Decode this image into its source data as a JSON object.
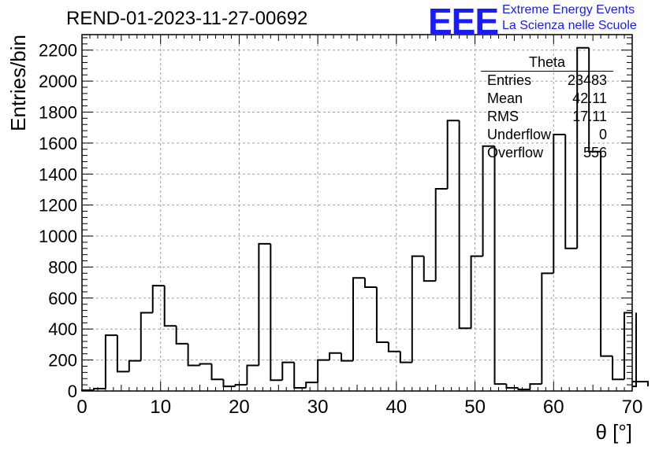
{
  "header": {
    "run_title": "REND-01-2023-11-27-00692",
    "logo": "EEE",
    "logo_line1": "Extreme Energy Events",
    "logo_line2": "La Scienza nelle Scuole"
  },
  "stats": {
    "title": "Theta",
    "rows": [
      {
        "label": "Entries",
        "value": "23483"
      },
      {
        "label": "Mean",
        "value": "42.11"
      },
      {
        "label": "RMS",
        "value": "17.11"
      },
      {
        "label": "Underflow",
        "value": "0"
      },
      {
        "label": "Overflow",
        "value": "556"
      }
    ]
  },
  "chart_data": {
    "type": "bar",
    "subtype": "step-histogram",
    "xlabel": "θ [°]",
    "ylabel": "Entries/bin",
    "xlim": [
      0,
      70
    ],
    "ylim": [
      0,
      2300
    ],
    "bin_width": 1.5,
    "x_ticks": [
      "0",
      "10",
      "20",
      "30",
      "40",
      "50",
      "60",
      "70"
    ],
    "y_ticks": [
      "0",
      "200",
      "400",
      "600",
      "800",
      "1000",
      "1200",
      "1400",
      "1600",
      "1800",
      "2000",
      "2200"
    ],
    "bin_edges_start": 0,
    "values": [
      5,
      15,
      360,
      125,
      195,
      505,
      680,
      420,
      305,
      165,
      175,
      75,
      30,
      40,
      165,
      950,
      70,
      185,
      20,
      55,
      200,
      245,
      195,
      730,
      670,
      315,
      255,
      185,
      870,
      710,
      1305,
      1745,
      405,
      870,
      1580,
      45,
      20,
      10,
      45,
      760,
      1655,
      920,
      2215,
      1545,
      225,
      75,
      505,
      30,
      60
    ],
    "grid": true,
    "colors": {
      "line": "#000000",
      "grid": "#a0a0a0",
      "logo": "#1a1aff"
    }
  }
}
